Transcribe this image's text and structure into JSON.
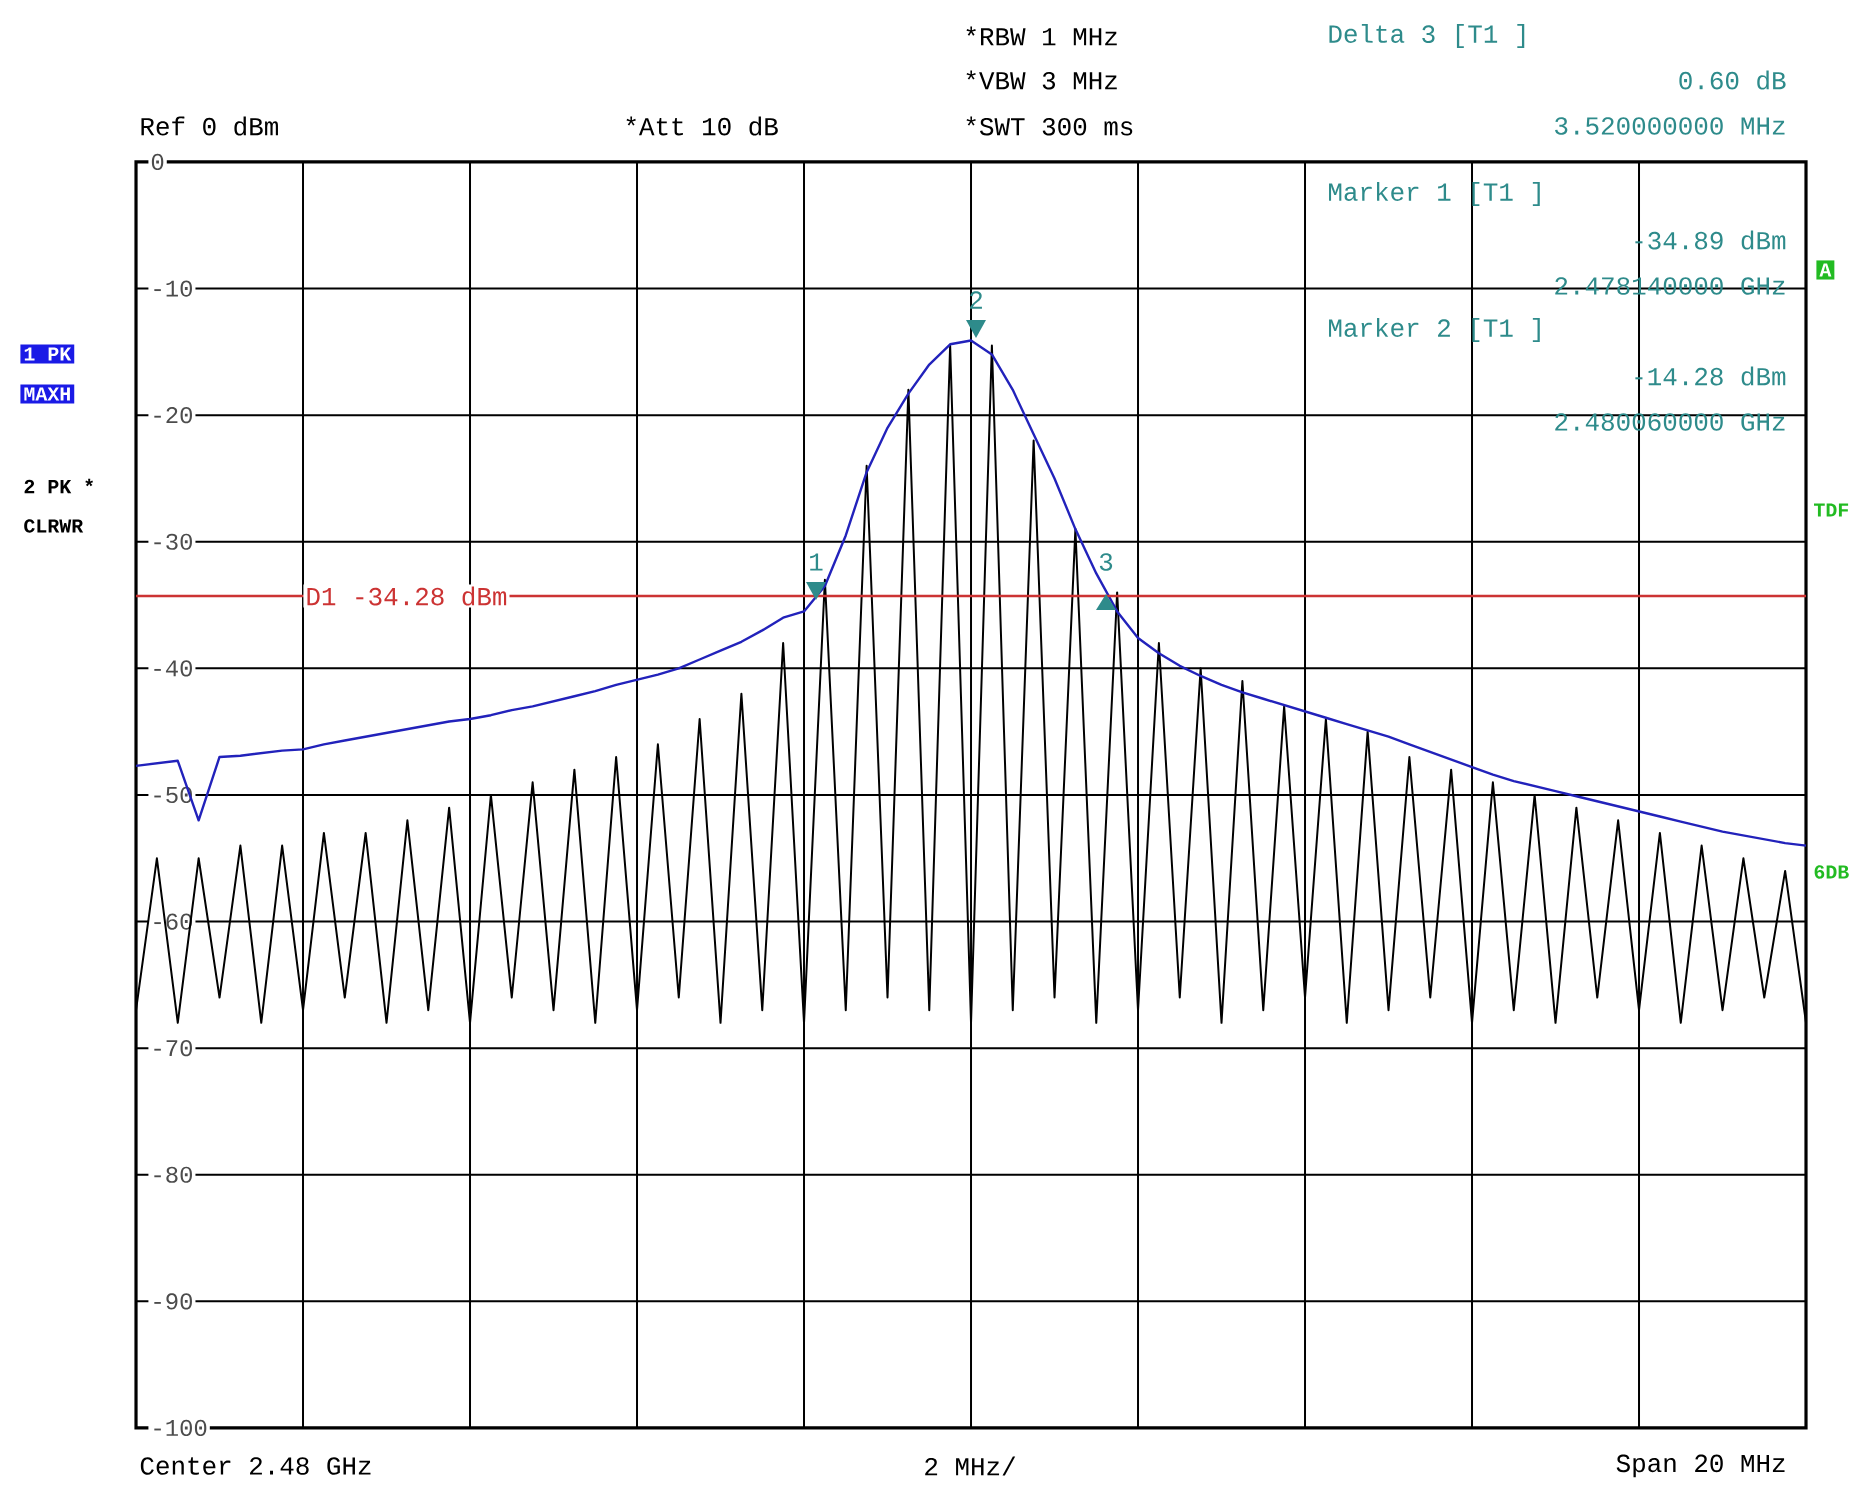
{
  "chart_data": {
    "type": "line",
    "annotations": [
      "Ref  0 dBm",
      "*Att  10 dB",
      "*RBW 1 MHz",
      "*VBW 3 MHz",
      "*SWT 300 ms",
      "Delta 3 [T1 ]",
      "0.60 dB",
      "3.520000000 MHz",
      "Marker 1 [T1 ]",
      "-34.89 dBm",
      "2.478140000 GHz",
      "Marker 2 [T1 ]",
      "-14.28 dBm",
      "2.480060000 GHz",
      "1 PK",
      "MAXH",
      "2 PK *",
      "CLRWR",
      "A",
      "TDF",
      "6DB",
      "Center 2.48 GHz",
      "2 MHz/",
      "Span 20 MHz",
      "1",
      "2",
      "3"
    ],
    "categories": [
      null,
      null,
      null,
      null,
      null,
      null,
      null,
      null,
      null,
      null,
      null,
      null,
      null,
      null,
      null,
      null,
      null,
      null,
      null,
      null,
      null,
      null,
      null,
      null,
      null,
      null,
      null,
      null,
      null,
      null,
      null,
      null,
      null,
      null,
      null,
      null,
      null,
      null,
      null,
      null,
      null,
      null,
      null,
      null,
      null,
      null,
      null,
      null,
      null,
      null,
      null,
      null,
      null,
      null,
      null,
      null,
      null,
      null,
      null,
      null,
      null,
      null,
      null,
      null,
      null,
      null,
      null,
      null,
      null,
      null,
      null,
      null,
      null,
      null,
      null,
      null,
      null,
      null,
      null,
      null,
      null
    ],
    "series": [
      {
        "color": "#000000",
        "values": [
          -67,
          -55,
          -68,
          -55,
          -66,
          -54,
          -68,
          -54,
          -67,
          -53,
          -66,
          -53,
          -68,
          -52,
          -67,
          -51,
          -68,
          -50,
          -66,
          -49,
          -67,
          -48,
          -68,
          -47,
          -67,
          -46,
          -66,
          -44,
          -68,
          -42,
          -67,
          -38,
          -68,
          -33,
          -67,
          -24,
          -66,
          -18,
          -67,
          -14.5,
          -68,
          -14.5,
          -67,
          -22,
          -66,
          -29,
          -68,
          -34,
          -67,
          -38,
          -66,
          -40,
          -68,
          -41,
          -67,
          -43,
          -66,
          -44,
          -68,
          -45,
          -67,
          -47,
          -66,
          -48,
          -68,
          -49,
          -67,
          -50,
          -68,
          -51,
          -66,
          -52,
          -67,
          -53,
          -68,
          -54,
          -67,
          -55,
          -66,
          -56,
          -68
        ]
      },
      {
        "color": "#2222bb",
        "values": [
          -47.7,
          -47.5,
          -47.3,
          -52,
          -47,
          -46.9,
          -46.7,
          -46.5,
          -46.4,
          -46,
          -45.7,
          -45.4,
          -45.1,
          -44.8,
          -44.5,
          -44.2,
          -44,
          -43.7,
          -43.3,
          -43,
          -42.6,
          -42.2,
          -41.8,
          -41.3,
          -40.9,
          -40.5,
          -40,
          -39.3,
          -38.6,
          -37.9,
          -37,
          -36,
          -35.5,
          -33.5,
          -29.5,
          -24.5,
          -21,
          -18.3,
          -16,
          -14.4,
          -14.1,
          -15.2,
          -18,
          -21.5,
          -25,
          -29,
          -32.5,
          -35.5,
          -37.6,
          -38.8,
          -39.8,
          -40.6,
          -41.3,
          -41.9,
          -42.4,
          -42.9,
          -43.4,
          -43.9,
          -44.4,
          -44.9,
          -45.4,
          -46,
          -46.6,
          -47.2,
          -47.8,
          -48.4,
          -48.9,
          -49.3,
          -49.7,
          -50.1,
          -50.5,
          -50.9,
          -51.3,
          -51.7,
          -52.1,
          -52.5,
          -52.9,
          -53.2,
          -53.5,
          -53.8,
          -54
        ]
      }
    ],
    "ref_lines": [
      {
        "axis": "y",
        "value": -34.28,
        "label": "D1 -34.28 dBm",
        "color": "#cc3333"
      }
    ],
    "ylim": [
      -100,
      0
    ],
    "yticks": [
      {
        "value": 0,
        "label": "0"
      },
      {
        "value": -10,
        "label": "-10"
      },
      {
        "value": -20,
        "label": "-20"
      },
      {
        "value": -30,
        "label": "-30"
      },
      {
        "value": -40,
        "label": "-40"
      },
      {
        "value": -50,
        "label": "-50"
      },
      {
        "value": -60,
        "label": "-60"
      },
      {
        "value": -70,
        "label": "-70"
      },
      {
        "value": -80,
        "label": "-80"
      },
      {
        "value": -90,
        "label": "-90"
      },
      {
        "value": -100,
        "label": "-100"
      }
    ],
    "tick_labels": "y",
    "grid": true
  }
}
